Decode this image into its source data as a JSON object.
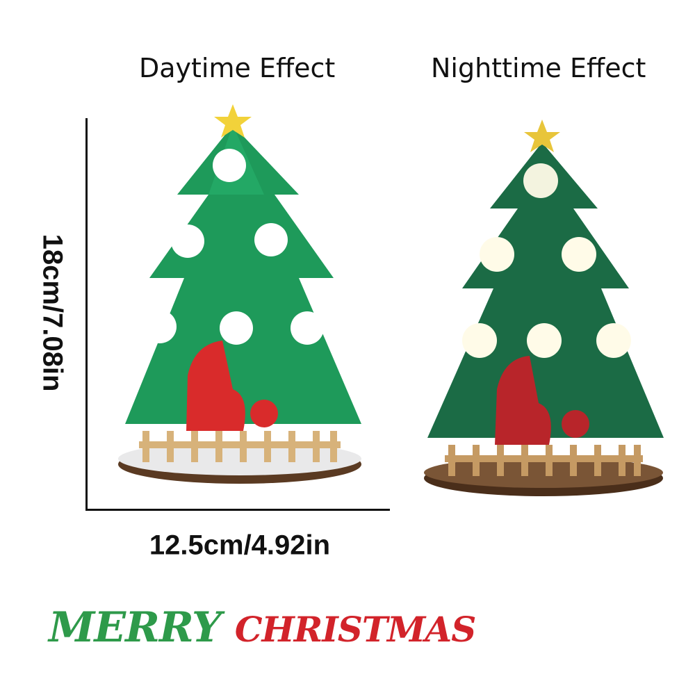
{
  "captions": {
    "day": "Daytime Effect",
    "night": "Nighttime Effect"
  },
  "dimensions": {
    "height": "18cm/7.08in",
    "width": "12.5cm/4.92in"
  },
  "logo": {
    "text_1": "MERRY",
    "text_2": "CHRISTMAS"
  },
  "colors": {
    "tree_day": "#1e9a5a",
    "tree_night": "#1b6b45",
    "star": "#f2d23a",
    "gnome": "#d92b2b",
    "fence": "#d7b27a",
    "base": "#6b4a30"
  }
}
